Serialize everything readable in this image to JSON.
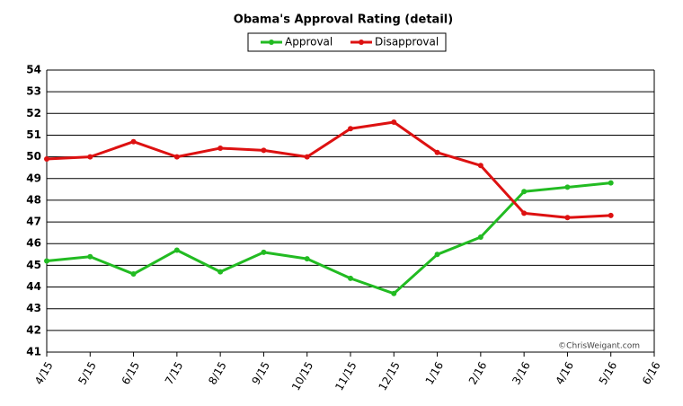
{
  "chart_data": {
    "type": "line",
    "title": "Obama's Approval Rating (detail)",
    "categories": [
      "4/15",
      "5/15",
      "6/15",
      "7/15",
      "8/15",
      "9/15",
      "10/15",
      "11/15",
      "12/15",
      "1/16",
      "2/16",
      "3/16",
      "4/16",
      "5/16",
      "6/16"
    ],
    "series": [
      {
        "name": "Approval",
        "color": "#22bb22",
        "values": [
          45.2,
          45.4,
          44.6,
          45.7,
          44.7,
          45.6,
          45.3,
          44.4,
          43.7,
          45.5,
          46.3,
          48.4,
          48.6,
          48.8,
          null
        ]
      },
      {
        "name": "Disapproval",
        "color": "#dd1111",
        "values": [
          49.9,
          50.0,
          50.7,
          50.0,
          50.4,
          50.3,
          50.0,
          51.3,
          51.6,
          50.2,
          49.6,
          47.4,
          47.2,
          47.3,
          null
        ]
      }
    ],
    "ylim": [
      41,
      54
    ],
    "yticks": [
      41,
      42,
      43,
      44,
      45,
      46,
      47,
      48,
      49,
      50,
      51,
      52,
      53,
      54
    ],
    "grid": true,
    "annotation": "©ChrisWeigant.com"
  }
}
